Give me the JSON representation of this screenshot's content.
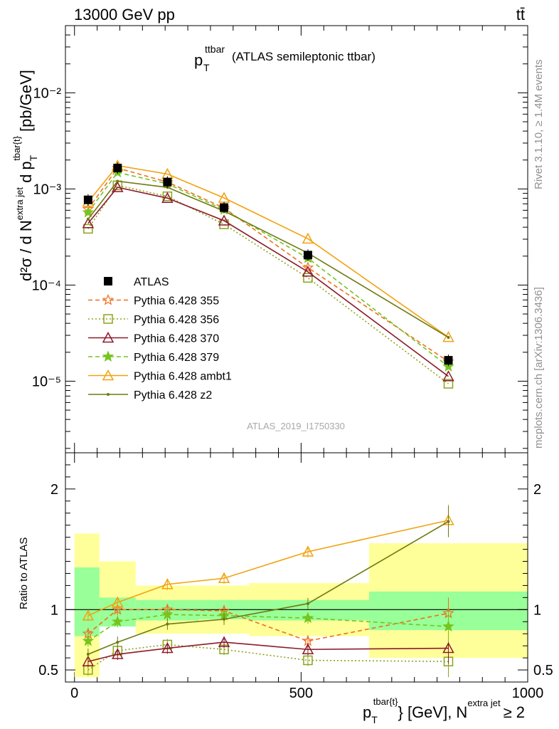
{
  "header": {
    "left": "13000 GeV pp",
    "right": "tt̄"
  },
  "plot_title": {
    "main": "p",
    "sub": "T",
    "sup": "ttbar",
    "rest": "(ATLAS semileptonic ttbar)"
  },
  "ylabel_main": {
    "d2sigma": "d²σ / d N",
    "sup1": "extra jet",
    "dp": " d p",
    "subT": "T",
    "sup2": "tbar{t}",
    "unit": " [pb/GeV]"
  },
  "ylabel_ratio": "Ratio to ATLAS",
  "xlabel": {
    "p": "p",
    "subT": "T",
    "sup1": "tbar{t}",
    "mid": "} [GeV], N",
    "sup2": "extra jet",
    "tail": "≥ 2"
  },
  "right_side": {
    "rivet": "Rivet 3.1.10, ≥ 1.4M events",
    "mcplots": "mcplots.cern.ch [arXiv:1306.3436]"
  },
  "watermark": "ATLAS_2019_I1750330",
  "legend": [
    {
      "label": "ATLAS",
      "color": "#000000",
      "marker": "square-filled",
      "dash": "none"
    },
    {
      "label": "Pythia 6.428 355",
      "color": "#ef6f1e",
      "marker": "star-open",
      "dash": "6,4"
    },
    {
      "label": "Pythia 6.428 356",
      "color": "#8ea31a",
      "marker": "square-open",
      "dash": "2,3"
    },
    {
      "label": "Pythia 6.428 370",
      "color": "#8b1a2b",
      "marker": "triangle-open",
      "dash": ""
    },
    {
      "label": "Pythia 6.428 379",
      "color": "#76c41e",
      "marker": "star-filled",
      "dash": "6,4"
    },
    {
      "label": "Pythia 6.428 ambt1",
      "color": "#f2a20f",
      "marker": "triangle-open",
      "dash": ""
    },
    {
      "label": "Pythia 6.428 z2",
      "color": "#6e7a10",
      "marker": "dot",
      "dash": ""
    }
  ],
  "chart_data": {
    "type": "line",
    "xlim": [
      -20,
      1000
    ],
    "main_ylim": [
      1.8e-06,
      0.05
    ],
    "main_log": true,
    "ratio_ylim": [
      0.4,
      2.3
    ],
    "x_ticks": [
      "0",
      "500",
      "1000"
    ],
    "main_y_ticks": [
      "10⁻⁵",
      "10⁻⁴",
      "10⁻³",
      "10⁻²"
    ],
    "ratio_y_ticks": [
      "0.5",
      "1",
      "2"
    ],
    "x": [
      30,
      95,
      205,
      330,
      515,
      825
    ],
    "bins": [
      [
        0,
        55
      ],
      [
        55,
        135
      ],
      [
        135,
        275
      ],
      [
        275,
        385
      ],
      [
        385,
        650
      ],
      [
        650,
        1000
      ]
    ],
    "data": [
      0.00077,
      0.00165,
      0.00118,
      0.00064,
      0.000205,
      1.65e-05
    ],
    "band_inner": [
      [
        0.78,
        1.35
      ],
      [
        0.86,
        1.1
      ],
      [
        0.91,
        1.08
      ],
      [
        0.92,
        1.08
      ],
      [
        0.91,
        1.08
      ],
      [
        0.83,
        1.15
      ]
    ],
    "band_outer": [
      [
        0.44,
        1.63
      ],
      [
        0.88,
        1.4
      ],
      [
        0.8,
        1.2
      ],
      [
        0.8,
        1.2
      ],
      [
        0.78,
        1.22
      ],
      [
        0.6,
        1.55
      ]
    ],
    "series": [
      {
        "name": "Pythia 6.428 355",
        "ratio": [
          0.8,
          1.0,
          1.0,
          0.99,
          0.74,
          0.97
        ]
      },
      {
        "name": "Pythia 6.428 356",
        "ratio": [
          0.5,
          0.66,
          0.71,
          0.67,
          0.58,
          0.57
        ]
      },
      {
        "name": "Pythia 6.428 370",
        "ratio": [
          0.57,
          0.63,
          0.68,
          0.73,
          0.67,
          0.68
        ]
      },
      {
        "name": "Pythia 6.428 379",
        "ratio": [
          0.74,
          0.9,
          0.96,
          0.95,
          0.93,
          0.86
        ]
      },
      {
        "name": "Pythia 6.428 ambt1",
        "ratio": [
          0.95,
          1.06,
          1.21,
          1.26,
          1.48,
          1.74
        ]
      },
      {
        "name": "Pythia 6.428 z2",
        "ratio": [
          0.63,
          0.73,
          0.88,
          0.92,
          1.05,
          1.73
        ]
      }
    ]
  }
}
